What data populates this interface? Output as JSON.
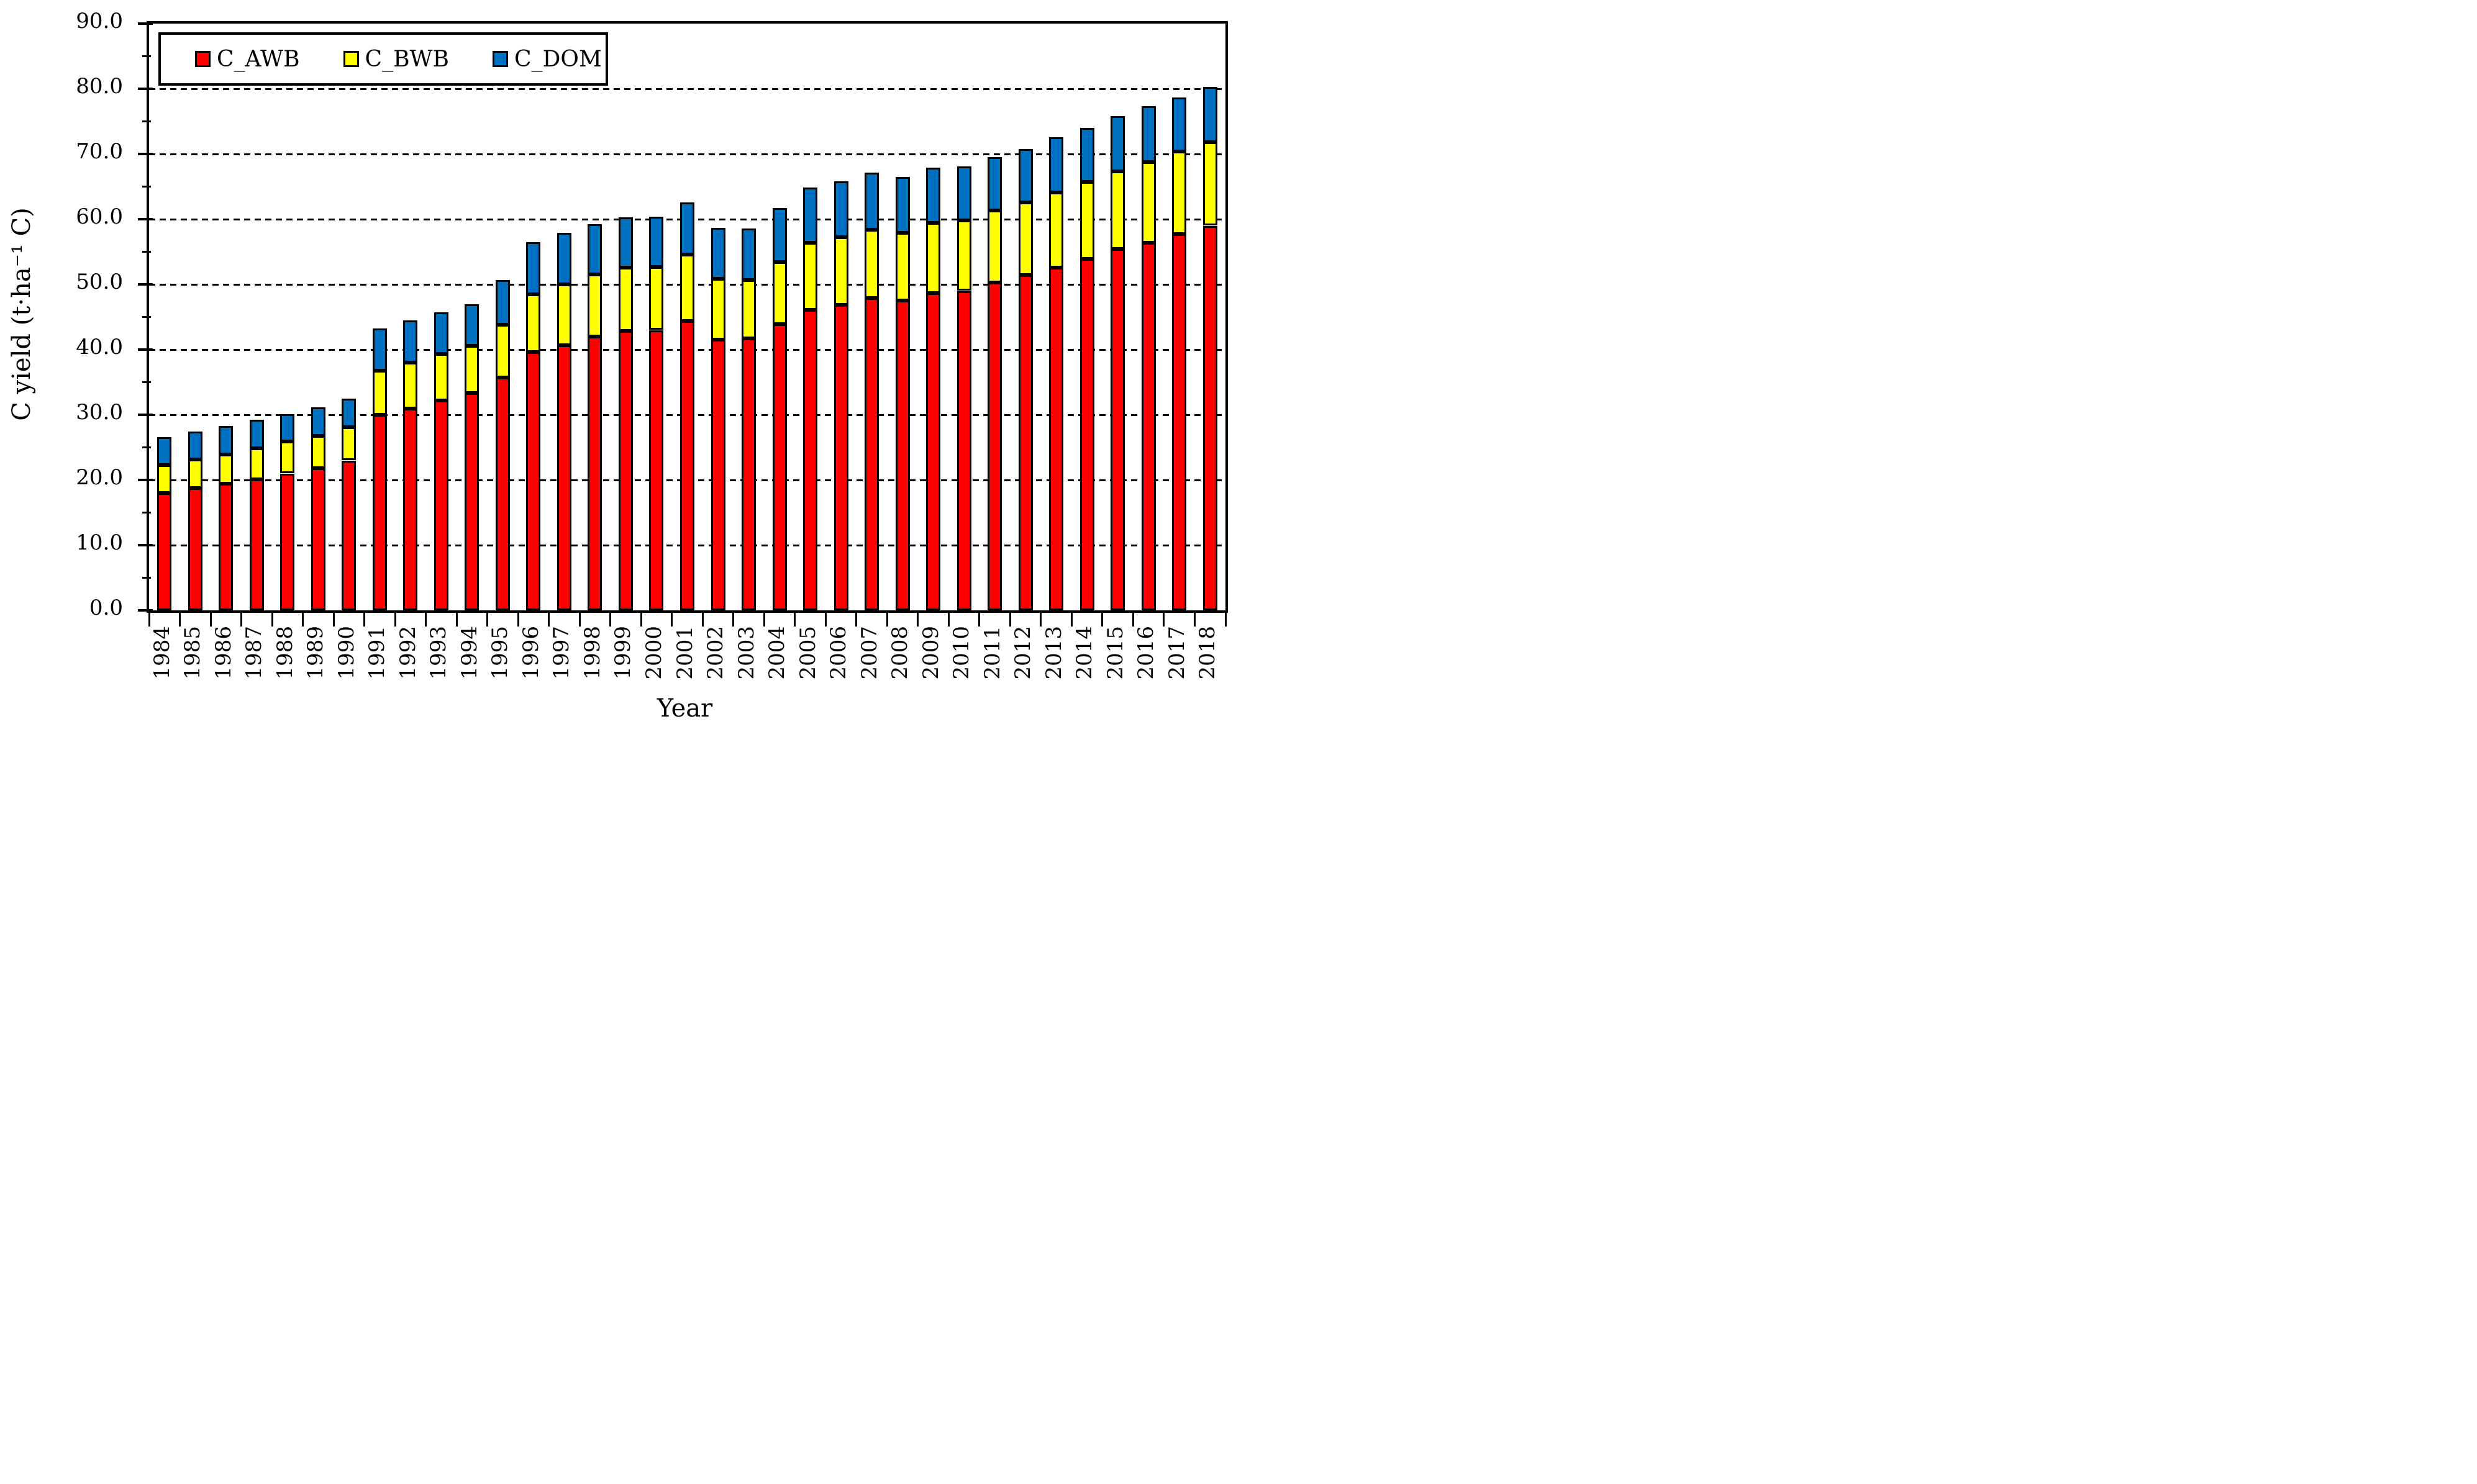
{
  "figure": {
    "ylabel": "C yield (t·ha⁻¹ C)",
    "xlabel": "Year",
    "background_color": "#ffffff",
    "frame_color": "#000000"
  },
  "legend": {
    "position": "top-left-inside",
    "entries": [
      {
        "label": "C_AWB",
        "color": "#FF0000",
        "swatch": "red-square-icon"
      },
      {
        "label": "C_BWB",
        "color": "#FFFF00",
        "swatch": "yellow-square-icon"
      },
      {
        "label": "C_DOM",
        "color": "#0070C0",
        "swatch": "blue-square-icon"
      }
    ]
  },
  "chart_data": {
    "type": "bar",
    "stacked": true,
    "title": "",
    "xlabel": "Year",
    "ylabel": "C yield (t·ha⁻¹ C)",
    "ylim": [
      0,
      90
    ],
    "ytick_step": 10,
    "y_minor_tick_step": 5,
    "ytick_labels": [
      "0.0",
      "10.0",
      "20.0",
      "30.0",
      "40.0",
      "50.0",
      "60.0",
      "70.0",
      "80.0",
      "90.0"
    ],
    "grid": "horizontal-dashed-major",
    "legend_position": "top-left inside plot",
    "categories": [
      1984,
      1985,
      1986,
      1987,
      1988,
      1989,
      1990,
      1991,
      1992,
      1993,
      1994,
      1995,
      1996,
      1997,
      1998,
      1999,
      2000,
      2001,
      2002,
      2003,
      2004,
      2005,
      2006,
      2007,
      2008,
      2009,
      2010,
      2011,
      2012,
      2013,
      2014,
      2015,
      2016,
      2017,
      2018
    ],
    "series": [
      {
        "name": "C_AWB",
        "color": "#FF0000",
        "values": [
          18.0,
          18.8,
          19.4,
          20.1,
          21.0,
          21.8,
          23.0,
          30.0,
          31.0,
          32.2,
          33.3,
          35.7,
          39.6,
          40.7,
          42.0,
          42.9,
          43.0,
          44.4,
          41.5,
          41.7,
          43.9,
          46.1,
          46.9,
          47.9,
          47.5,
          48.7,
          49.0,
          50.3,
          51.4,
          52.6,
          53.9,
          55.4,
          56.4,
          57.7,
          59.0
        ]
      },
      {
        "name": "C_BWB",
        "color": "#FFFF00",
        "values": [
          4.3,
          4.3,
          4.5,
          4.8,
          4.9,
          5.0,
          5.1,
          6.8,
          7.0,
          7.1,
          7.3,
          8.1,
          8.9,
          9.3,
          9.5,
          9.7,
          9.7,
          10.2,
          9.4,
          9.0,
          9.5,
          10.3,
          10.3,
          10.5,
          10.4,
          10.7,
          10.8,
          11.0,
          11.2,
          11.5,
          11.8,
          11.9,
          12.4,
          12.7,
          12.8
        ]
      },
      {
        "name": "C_DOM",
        "color": "#0070C0",
        "values": [
          4.3,
          4.3,
          4.4,
          4.3,
          4.2,
          4.3,
          4.4,
          6.4,
          6.5,
          6.4,
          6.4,
          6.9,
          8.0,
          7.9,
          7.7,
          7.7,
          7.7,
          8.0,
          7.8,
          7.9,
          8.3,
          8.5,
          8.6,
          8.7,
          8.6,
          8.5,
          8.3,
          8.2,
          8.2,
          8.5,
          8.3,
          8.5,
          8.5,
          8.3,
          8.5
        ]
      }
    ]
  }
}
